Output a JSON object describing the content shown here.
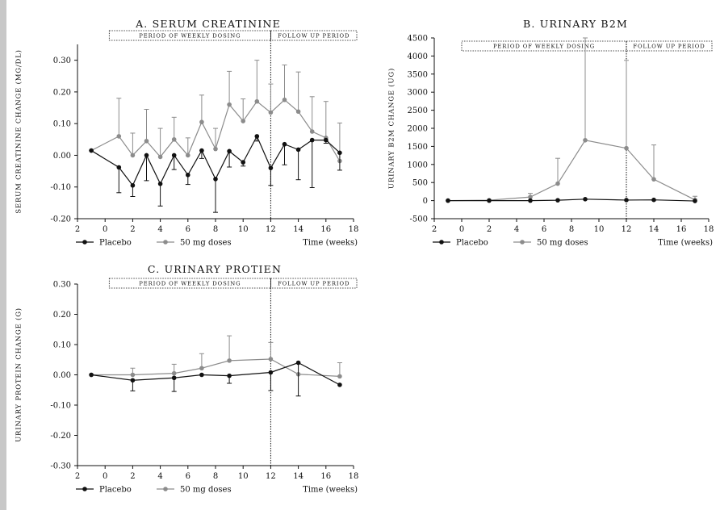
{
  "colors": {
    "placebo": "#111111",
    "dose50": "#8c8c8c",
    "page": "#ffffff",
    "frame": "#c8c8c8"
  },
  "legend": {
    "placebo": "Placebo",
    "dose50": "50 mg doses",
    "time": "Time (weeks)"
  },
  "bands": {
    "dosing": "PERIOD OF WEEKLY DOSING",
    "followup": "FOLLOW UP PERIOD"
  },
  "chart_data": [
    {
      "type": "line",
      "title": "A. SERUM CREATININE",
      "ylabel": "SERUM CREATININE CHANGE (MG/DL)",
      "xlabel": "Time (weeks)",
      "x_ticks": [
        "2",
        "0",
        "2",
        "4",
        "6",
        "8",
        "10",
        "12",
        "14",
        "16",
        "18"
      ],
      "y_ticks": [
        "0.30",
        "0.20",
        "0.10",
        "0.00",
        "-0.10",
        "-0.20"
      ],
      "ylim": [
        -0.2,
        0.35
      ],
      "follow_up_start_week": 12,
      "series": [
        {
          "name": "Placebo",
          "x": [
            -1,
            1,
            2,
            3,
            4,
            5,
            6,
            7,
            8,
            9,
            10,
            11,
            12,
            13,
            14,
            15,
            16,
            17
          ],
          "y": [
            0.015,
            -0.038,
            -0.095,
            0.0,
            -0.09,
            0.0,
            -0.062,
            0.015,
            -0.075,
            0.013,
            -0.022,
            0.06,
            -0.04,
            0.035,
            0.018,
            0.048,
            0.048,
            0.008
          ],
          "err": [
            0,
            0.08,
            0.035,
            0.08,
            0.07,
            0.045,
            0.03,
            0.025,
            0.105,
            0.05,
            0.012,
            0.015,
            0.055,
            0.065,
            0.095,
            0.15,
            0.01,
            0.055
          ]
        },
        {
          "name": "50 mg doses",
          "x": [
            -1,
            1,
            2,
            3,
            4,
            5,
            6,
            7,
            8,
            9,
            10,
            11,
            12,
            13,
            14,
            15,
            16,
            17
          ],
          "y": [
            0.015,
            0.06,
            0.0,
            0.045,
            -0.005,
            0.05,
            0.0,
            0.105,
            0.02,
            0.16,
            0.108,
            0.17,
            0.135,
            0.175,
            0.138,
            0.075,
            0.055,
            -0.018
          ],
          "err": [
            0,
            0.12,
            0.07,
            0.1,
            0.09,
            0.07,
            0.055,
            0.085,
            0.065,
            0.105,
            0.07,
            0.13,
            0.09,
            0.11,
            0.125,
            0.11,
            0.115,
            0.12
          ]
        }
      ]
    },
    {
      "type": "line",
      "title": "B. URINARY B2M",
      "ylabel": "URINARY B2M CHANGE (UG)",
      "xlabel": "Time (weeks)",
      "x_ticks": [
        "2",
        "0",
        "2",
        "4",
        "6",
        "8",
        "10",
        "12",
        "14",
        "16",
        "18"
      ],
      "y_ticks": [
        "4500",
        "4000",
        "3500",
        "3000",
        "2500",
        "2000",
        "1500",
        "1000",
        "500",
        "0",
        "-500"
      ],
      "ylim": [
        -500,
        4500
      ],
      "follow_up_start_week": 12,
      "series": [
        {
          "name": "Placebo",
          "x": [
            -1,
            2,
            5,
            7,
            9,
            12,
            14,
            17
          ],
          "y": [
            0,
            0,
            0,
            10,
            40,
            15,
            20,
            -10
          ],
          "err": [
            0,
            0,
            0,
            0,
            0,
            0,
            0,
            0
          ]
        },
        {
          "name": "50 mg doses",
          "x": [
            -1,
            2,
            5,
            7,
            9,
            12,
            14,
            17
          ],
          "y": [
            0,
            10,
            100,
            470,
            1670,
            1450,
            590,
            20
          ],
          "err": [
            0,
            0,
            100,
            700,
            2830,
            2430,
            950,
            100
          ]
        }
      ]
    },
    {
      "type": "line",
      "title": "C. URINARY PROTIEN",
      "ylabel": "URINARY PROTEIN CHANGE (G)",
      "xlabel": "Time (weeks)",
      "x_ticks": [
        "2",
        "0",
        "2",
        "4",
        "6",
        "8",
        "10",
        "12",
        "14",
        "16",
        "18"
      ],
      "y_ticks": [
        "0.30",
        "0.20",
        "0.10",
        "0.00",
        "-0.10",
        "-0.20",
        "-0.30"
      ],
      "ylim": [
        -0.3,
        0.3
      ],
      "follow_up_start_week": 12,
      "series": [
        {
          "name": "Placebo",
          "x": [
            -1,
            2,
            5,
            7,
            9,
            12,
            14,
            17
          ],
          "y": [
            0.0,
            -0.018,
            -0.01,
            0.0,
            -0.003,
            0.008,
            0.04,
            -0.033
          ],
          "err": [
            0,
            0.035,
            0.045,
            0.0,
            0.025,
            0.06,
            0.11,
            0.0
          ]
        },
        {
          "name": "50 mg doses",
          "x": [
            -1,
            2,
            5,
            7,
            9,
            12,
            14,
            17
          ],
          "y": [
            0.0,
            0.0,
            0.005,
            0.022,
            0.047,
            0.052,
            0.002,
            -0.005
          ],
          "err": [
            0,
            0.022,
            0.03,
            0.048,
            0.082,
            0.055,
            0.0,
            0.045
          ]
        }
      ]
    }
  ]
}
